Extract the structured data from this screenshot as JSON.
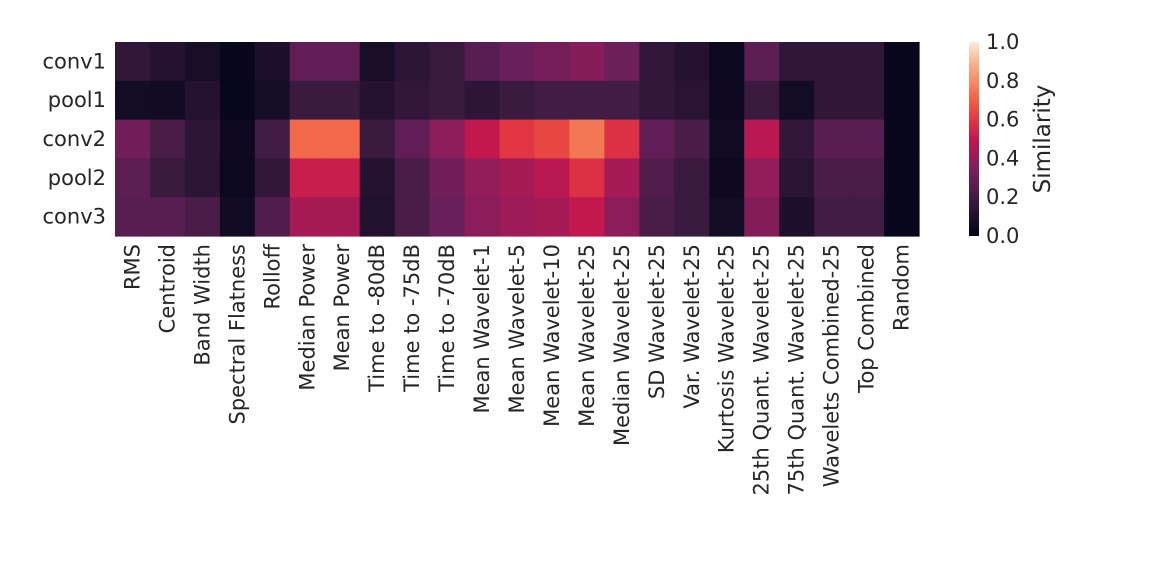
{
  "chart_data": {
    "type": "heatmap",
    "title": "",
    "xlabel": "",
    "ylabel": "",
    "rows": [
      "conv1",
      "pool1",
      "conv2",
      "pool2",
      "conv3"
    ],
    "columns": [
      "RMS",
      "Centroid",
      "Band Width",
      "Spectral Flatness",
      "Rolloff",
      "Median Power",
      "Mean Power",
      "Time to -80dB",
      "Time to -75dB",
      "Time to -70dB",
      "Mean Wavelet-1",
      "Mean Wavelet-5",
      "Mean Wavelet-10",
      "Mean Wavelet-25",
      "Median Wavelet-25",
      "SD Wavelet-25",
      "Var. Wavelet-25",
      "Kurtosis Wavelet-25",
      "25th Quant. Wavelet-25",
      "75th Quant. Wavelet-25",
      "Wavelets Combined-25",
      "Top Combined",
      "Random"
    ],
    "values": [
      [
        0.16,
        0.12,
        0.08,
        0.02,
        0.1,
        0.28,
        0.28,
        0.08,
        0.14,
        0.18,
        0.26,
        0.3,
        0.33,
        0.37,
        0.31,
        0.16,
        0.12,
        0.03,
        0.27,
        0.15,
        0.15,
        0.15,
        0.02
      ],
      [
        0.06,
        0.05,
        0.12,
        0.02,
        0.07,
        0.18,
        0.18,
        0.12,
        0.16,
        0.18,
        0.14,
        0.18,
        0.2,
        0.2,
        0.2,
        0.16,
        0.13,
        0.04,
        0.18,
        0.06,
        0.15,
        0.15,
        0.02
      ],
      [
        0.32,
        0.22,
        0.14,
        0.04,
        0.2,
        0.72,
        0.72,
        0.18,
        0.28,
        0.38,
        0.5,
        0.6,
        0.64,
        0.75,
        0.58,
        0.28,
        0.22,
        0.05,
        0.48,
        0.16,
        0.26,
        0.26,
        0.02
      ],
      [
        0.27,
        0.18,
        0.14,
        0.03,
        0.16,
        0.52,
        0.52,
        0.12,
        0.22,
        0.32,
        0.4,
        0.44,
        0.48,
        0.58,
        0.44,
        0.24,
        0.18,
        0.04,
        0.4,
        0.13,
        0.22,
        0.22,
        0.02
      ],
      [
        0.26,
        0.26,
        0.22,
        0.05,
        0.24,
        0.44,
        0.44,
        0.11,
        0.22,
        0.3,
        0.38,
        0.42,
        0.44,
        0.5,
        0.38,
        0.22,
        0.18,
        0.06,
        0.36,
        0.1,
        0.2,
        0.2,
        0.02
      ]
    ],
    "vmin": 0,
    "vmax": 1,
    "colormap": "rocket",
    "colorbar": {
      "label": "Similarity",
      "ticks": [
        "0.0",
        "0.2",
        "0.4",
        "0.6",
        "0.8",
        "1.0"
      ],
      "range": [
        0,
        1
      ]
    }
  }
}
